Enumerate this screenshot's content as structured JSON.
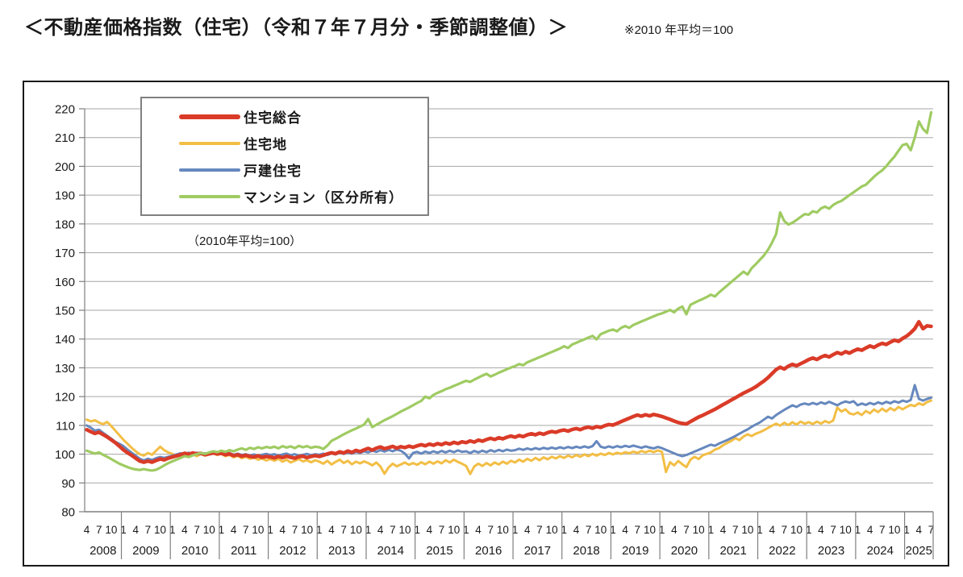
{
  "page": {
    "title": "＜不動産価格指数（住宅）（令和７年７月分・季節調整値）＞",
    "note": "※2010 年平均＝100"
  },
  "legend": {
    "note": "（2010年平均=100）",
    "entries": [
      {
        "label": "住宅総合",
        "color": "#da3b28",
        "swatch_thickness": 6
      },
      {
        "label": "住宅地",
        "color": "#f2be45",
        "swatch_thickness": 4
      },
      {
        "label": "戸建住宅",
        "color": "#6688be",
        "swatch_thickness": 4
      },
      {
        "label": "マンション（区分所有）",
        "color": "#9fcb62",
        "swatch_thickness": 4
      }
    ]
  },
  "chart_data": {
    "type": "line",
    "title": "不動産価格指数（住宅）季節調整値",
    "x_freq": "monthly",
    "x_start": "2008-04",
    "x_end": "2025-07",
    "ylim": [
      80,
      220
    ],
    "y_ticks": [
      80,
      90,
      100,
      110,
      120,
      130,
      140,
      150,
      160,
      170,
      180,
      190,
      200,
      210,
      220
    ],
    "grid": true,
    "legend_position": "top-left-inside",
    "x_axis": {
      "month_tick_labels": [
        1,
        4,
        7,
        10
      ],
      "year_labels": [
        "2008",
        "2009",
        "2010",
        "2011",
        "2012",
        "2013",
        "2014",
        "2015",
        "2016",
        "2017",
        "2018",
        "2019",
        "2020",
        "2021",
        "2022",
        "2023",
        "2024",
        "2025"
      ]
    },
    "series": [
      {
        "name": "住宅地",
        "color": "#f2be45",
        "width": 3,
        "values": [
          112.0,
          111.4,
          111.8,
          111.0,
          110.4,
          111.2,
          109.8,
          108.2,
          106.6,
          105.0,
          103.6,
          102.2,
          101.0,
          100.0,
          99.5,
          100.4,
          99.8,
          101.2,
          102.6,
          101.4,
          100.6,
          100.1,
          99.5,
          100.3,
          99.7,
          100.4,
          99.9,
          99.3,
          100.1,
          99.5,
          99.9,
          100.3,
          99.7,
          100.1,
          99.3,
          99.7,
          98.9,
          99.4,
          98.6,
          99.1,
          98.4,
          98.8,
          98.1,
          98.5,
          97.8,
          98.3,
          97.7,
          98.4,
          97.4,
          98.1,
          97.1,
          97.7,
          98.3,
          97.5,
          97.9,
          97.2,
          97.9,
          97.4,
          96.7,
          97.7,
          96.4,
          97.3,
          98.1,
          96.9,
          97.7,
          96.5,
          97.4,
          96.8,
          97.5,
          96.9,
          96.1,
          97.1,
          95.7,
          93.2,
          95.4,
          96.7,
          95.8,
          96.4,
          97.1,
          96.3,
          96.9,
          96.3,
          97.2,
          96.5,
          97.4,
          96.7,
          97.5,
          96.8,
          97.9,
          97.1,
          98.1,
          97.3,
          96.7,
          95.9,
          93.1,
          95.7,
          96.7,
          95.9,
          96.9,
          96.1,
          97.1,
          96.4,
          97.4,
          96.7,
          97.7,
          97.1,
          98.1,
          97.4,
          98.4,
          97.7,
          98.7,
          97.9,
          98.9,
          98.2,
          99.1,
          98.5,
          99.3,
          98.7,
          99.5,
          98.9,
          99.7,
          99.1,
          99.9,
          99.3,
          100.1,
          99.5,
          100.2,
          99.7,
          100.4,
          99.9,
          100.5,
          100.1,
          100.7,
          100.3,
          100.9,
          100.4,
          101.1,
          100.6,
          101.2,
          100.7,
          101.3,
          100.8,
          93.8,
          97.2,
          96.1,
          97.6,
          96.5,
          95.5,
          98.1,
          99.1,
          98.3,
          99.6,
          100.1,
          100.6,
          101.6,
          102.1,
          103.1,
          103.9,
          104.6,
          105.6,
          104.9,
          106.1,
          106.9,
          106.3,
          107.1,
          107.6,
          108.3,
          109.1,
          109.9,
          110.6,
          109.9,
          110.9,
          110.1,
          111.1,
          110.3,
          111.3,
          110.6,
          111.1,
          110.5,
          111.3,
          110.6,
          111.5,
          110.9,
          111.7,
          116.2,
          114.8,
          115.6,
          114.2,
          113.8,
          114.5,
          113.6,
          115.0,
          114.2,
          115.5,
          114.6,
          115.8,
          114.8,
          116.0,
          115.2,
          116.4,
          115.6,
          116.4,
          117.1,
          116.7,
          117.7,
          117.1,
          118.1,
          118.6
        ]
      },
      {
        "name": "戸建住宅",
        "color": "#6688be",
        "width": 3,
        "values": [
          110.0,
          109.2,
          108.2,
          108.5,
          107.4,
          106.4,
          105.4,
          104.3,
          103.6,
          102.8,
          101.6,
          100.5,
          99.5,
          98.4,
          97.8,
          98.4,
          98.0,
          98.6,
          99.0,
          98.7,
          99.1,
          99.5,
          99.9,
          100.3,
          100.0,
          100.5,
          100.1,
          100.5,
          100.0,
          100.3,
          99.9,
          100.2,
          100.5,
          100.3,
          100.0,
          100.4,
          99.8,
          100.2,
          99.7,
          100.0,
          99.5,
          99.9,
          99.4,
          99.8,
          100.1,
          99.7,
          100.0,
          99.5,
          99.9,
          100.2,
          99.6,
          100.0,
          99.4,
          99.8,
          100.1,
          99.6,
          100.0,
          99.8,
          100.2,
          99.7,
          100.3,
          99.9,
          100.5,
          100.1,
          100.6,
          100.2,
          100.8,
          100.4,
          101.0,
          100.6,
          101.2,
          100.8,
          101.4,
          100.9,
          101.5,
          101.0,
          101.6,
          101.2,
          100.2,
          98.5,
          100.4,
          100.8,
          100.2,
          100.9,
          100.4,
          101.0,
          100.5,
          101.1,
          100.6,
          101.2,
          100.7,
          101.3,
          100.8,
          101.0,
          100.4,
          101.1,
          100.6,
          101.2,
          100.7,
          101.4,
          100.9,
          101.5,
          101.0,
          101.6,
          101.2,
          101.4,
          101.9,
          101.5,
          102.0,
          101.6,
          102.1,
          101.7,
          102.2,
          101.8,
          102.3,
          101.9,
          102.4,
          102.0,
          102.5,
          102.1,
          102.6,
          102.2,
          102.7,
          102.3,
          102.8,
          104.5,
          102.6,
          102.2,
          102.7,
          102.3,
          102.8,
          102.4,
          102.9,
          102.5,
          103.0,
          102.6,
          102.2,
          102.7,
          102.3,
          102.0,
          102.5,
          102.1,
          101.5,
          100.9,
          100.3,
          99.7,
          99.3,
          99.7,
          100.3,
          100.9,
          101.5,
          102.1,
          102.7,
          103.3,
          102.9,
          103.7,
          104.3,
          104.9,
          105.6,
          106.3,
          107.1,
          107.9,
          108.6,
          109.5,
          110.3,
          111.0,
          112.0,
          113.0,
          112.4,
          113.6,
          114.5,
          115.4,
          116.2,
          117.0,
          116.4,
          117.2,
          117.6,
          117.2,
          117.8,
          117.3,
          118.0,
          117.5,
          118.2,
          117.6,
          117.0,
          117.8,
          118.3,
          117.9,
          118.4,
          117.0,
          117.6,
          117.1,
          117.8,
          117.3,
          118.0,
          117.5,
          118.2,
          117.7,
          118.4,
          117.9,
          118.6,
          118.2,
          118.8,
          124.0,
          119.2,
          118.6,
          119.2,
          119.6
        ]
      },
      {
        "name": "住宅総合",
        "color": "#da3b28",
        "width": 4.5,
        "values": [
          108.5,
          107.8,
          107.2,
          107.6,
          106.8,
          106.0,
          105.0,
          104.0,
          102.8,
          101.5,
          100.5,
          99.6,
          98.6,
          97.6,
          97.2,
          97.6,
          97.2,
          97.8,
          98.3,
          98.0,
          98.6,
          99.0,
          99.4,
          99.8,
          100.3,
          100.0,
          100.4,
          100.1,
          100.3,
          99.8,
          100.1,
          100.4,
          100.1,
          100.3,
          99.8,
          100.1,
          99.5,
          99.8,
          99.3,
          99.6,
          99.2,
          99.0,
          99.4,
          98.9,
          99.2,
          99.0,
          98.7,
          99.2,
          98.8,
          99.3,
          98.9,
          98.6,
          99.1,
          99.3,
          98.8,
          99.2,
          99.5,
          99.2,
          99.6,
          100.1,
          100.5,
          100.2,
          100.8,
          100.4,
          101.1,
          100.6,
          101.3,
          100.9,
          101.5,
          102.0,
          101.4,
          102.1,
          102.5,
          101.9,
          102.3,
          102.7,
          102.1,
          102.6,
          102.3,
          102.8,
          102.4,
          102.9,
          103.3,
          102.9,
          103.5,
          103.1,
          103.7,
          103.3,
          103.9,
          103.5,
          104.1,
          103.7,
          104.3,
          104.0,
          104.6,
          104.2,
          104.9,
          104.5,
          105.1,
          105.5,
          105.1,
          105.7,
          105.3,
          105.9,
          106.3,
          105.9,
          106.5,
          106.1,
          106.7,
          107.1,
          106.7,
          107.3,
          106.9,
          107.5,
          107.9,
          107.6,
          108.1,
          108.4,
          108.0,
          108.6,
          108.9,
          108.5,
          109.1,
          109.4,
          109.0,
          109.6,
          109.3,
          109.9,
          110.3,
          110.1,
          110.7,
          111.3,
          111.9,
          112.5,
          113.1,
          113.6,
          113.2,
          113.7,
          113.3,
          113.8,
          113.5,
          113.1,
          112.6,
          112.1,
          111.5,
          111.0,
          110.7,
          110.5,
          111.3,
          112.1,
          112.9,
          113.5,
          114.2,
          114.9,
          115.6,
          116.4,
          117.2,
          118.0,
          118.8,
          119.6,
          120.4,
          121.2,
          121.9,
          122.6,
          123.4,
          124.4,
          125.4,
          126.6,
          128.0,
          129.4,
          130.2,
          129.6,
          130.6,
          131.2,
          130.7,
          131.4,
          132.1,
          132.9,
          133.4,
          132.9,
          133.7,
          134.3,
          133.8,
          134.6,
          135.3,
          134.8,
          135.6,
          135.1,
          135.9,
          136.5,
          136.1,
          136.9,
          137.6,
          137.1,
          137.9,
          138.5,
          138.1,
          138.9,
          139.6,
          139.2,
          140.2,
          141.0,
          142.2,
          143.6,
          146.0,
          143.6,
          144.6,
          144.4
        ]
      },
      {
        "name": "マンション（区分所有）",
        "color": "#9fcb62",
        "width": 3.2,
        "values": [
          101.2,
          100.7,
          100.2,
          100.6,
          99.8,
          99.1,
          98.3,
          97.5,
          96.7,
          96.1,
          95.5,
          95.0,
          94.7,
          94.5,
          94.8,
          94.5,
          94.3,
          94.6,
          95.3,
          96.1,
          96.9,
          97.5,
          98.1,
          98.7,
          99.3,
          99.0,
          99.6,
          100.0,
          100.4,
          100.1,
          100.6,
          101.0,
          100.7,
          101.2,
          100.8,
          101.4,
          101.0,
          101.6,
          102.0,
          101.5,
          102.2,
          101.8,
          102.4,
          102.0,
          102.5,
          102.2,
          102.6,
          102.0,
          102.8,
          102.3,
          102.7,
          102.1,
          102.9,
          102.4,
          102.8,
          102.2,
          102.6,
          102.4,
          101.8,
          103.0,
          104.6,
          105.3,
          106.1,
          106.9,
          107.6,
          108.3,
          108.9,
          109.6,
          110.3,
          112.2,
          109.4,
          110.2,
          111.0,
          111.8,
          112.5,
          113.2,
          114.0,
          114.8,
          115.5,
          116.2,
          117.0,
          117.8,
          118.5,
          120.0,
          119.4,
          120.6,
          121.3,
          121.9,
          122.6,
          123.1,
          123.7,
          124.3,
          124.9,
          125.5,
          125.1,
          125.9,
          126.6,
          127.3,
          127.9,
          127.0,
          127.6,
          128.3,
          128.9,
          129.5,
          130.1,
          130.6,
          131.3,
          130.9,
          131.9,
          132.5,
          133.1,
          133.7,
          134.3,
          134.9,
          135.5,
          136.1,
          136.7,
          137.5,
          136.9,
          138.1,
          138.7,
          139.3,
          139.9,
          140.5,
          141.1,
          139.9,
          141.7,
          142.3,
          142.9,
          143.3,
          142.7,
          143.9,
          144.5,
          143.9,
          144.9,
          145.5,
          146.1,
          146.7,
          147.3,
          147.9,
          148.5,
          148.9,
          149.5,
          150.1,
          149.3,
          150.6,
          151.3,
          148.6,
          151.9,
          152.6,
          153.3,
          153.9,
          154.6,
          155.4,
          154.8,
          156.2,
          157.4,
          158.6,
          159.8,
          161.0,
          162.2,
          163.4,
          162.4,
          164.6,
          166.0,
          167.5,
          169.0,
          171.0,
          173.5,
          176.5,
          184.0,
          181.0,
          179.8,
          180.4,
          181.4,
          182.4,
          183.4,
          183.2,
          184.4,
          184.0,
          185.4,
          186.0,
          185.3,
          186.6,
          187.4,
          188.0,
          189.0,
          190.0,
          191.0,
          192.0,
          193.0,
          193.6,
          195.0,
          196.4,
          197.6,
          198.6,
          200.0,
          201.8,
          203.4,
          205.4,
          207.4,
          207.8,
          205.6,
          210.0,
          215.6,
          213.0,
          211.6,
          218.8
        ]
      }
    ]
  }
}
